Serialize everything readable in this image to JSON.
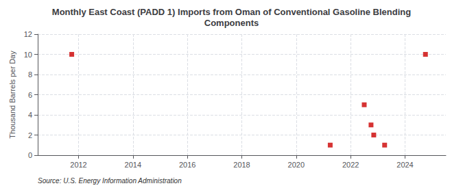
{
  "chart_data": {
    "type": "scatter",
    "title": "Monthly East Coast (PADD 1) Imports from Oman of Conventional Gasoline Blending\nComponents",
    "ylabel": "Thousand Barrels per Day",
    "annotation": "Source: U.S. Energy Information Administration",
    "x": [
      2011.75,
      2021.25,
      2022.5,
      2022.75,
      2022.85,
      2023.25,
      2024.75
    ],
    "values": [
      10.0,
      1.0,
      5.0,
      3.0,
      2.0,
      1.0,
      10.0
    ],
    "color": "#cc0000",
    "marker": "square",
    "xlim": [
      2010.5,
      2025.5
    ],
    "ylim": [
      0,
      12
    ],
    "xticks": [
      2012,
      2014,
      2016,
      2018,
      2020,
      2022,
      2024
    ],
    "yticks": [
      0,
      2,
      4,
      6,
      8,
      10,
      12
    ],
    "grid": true
  }
}
